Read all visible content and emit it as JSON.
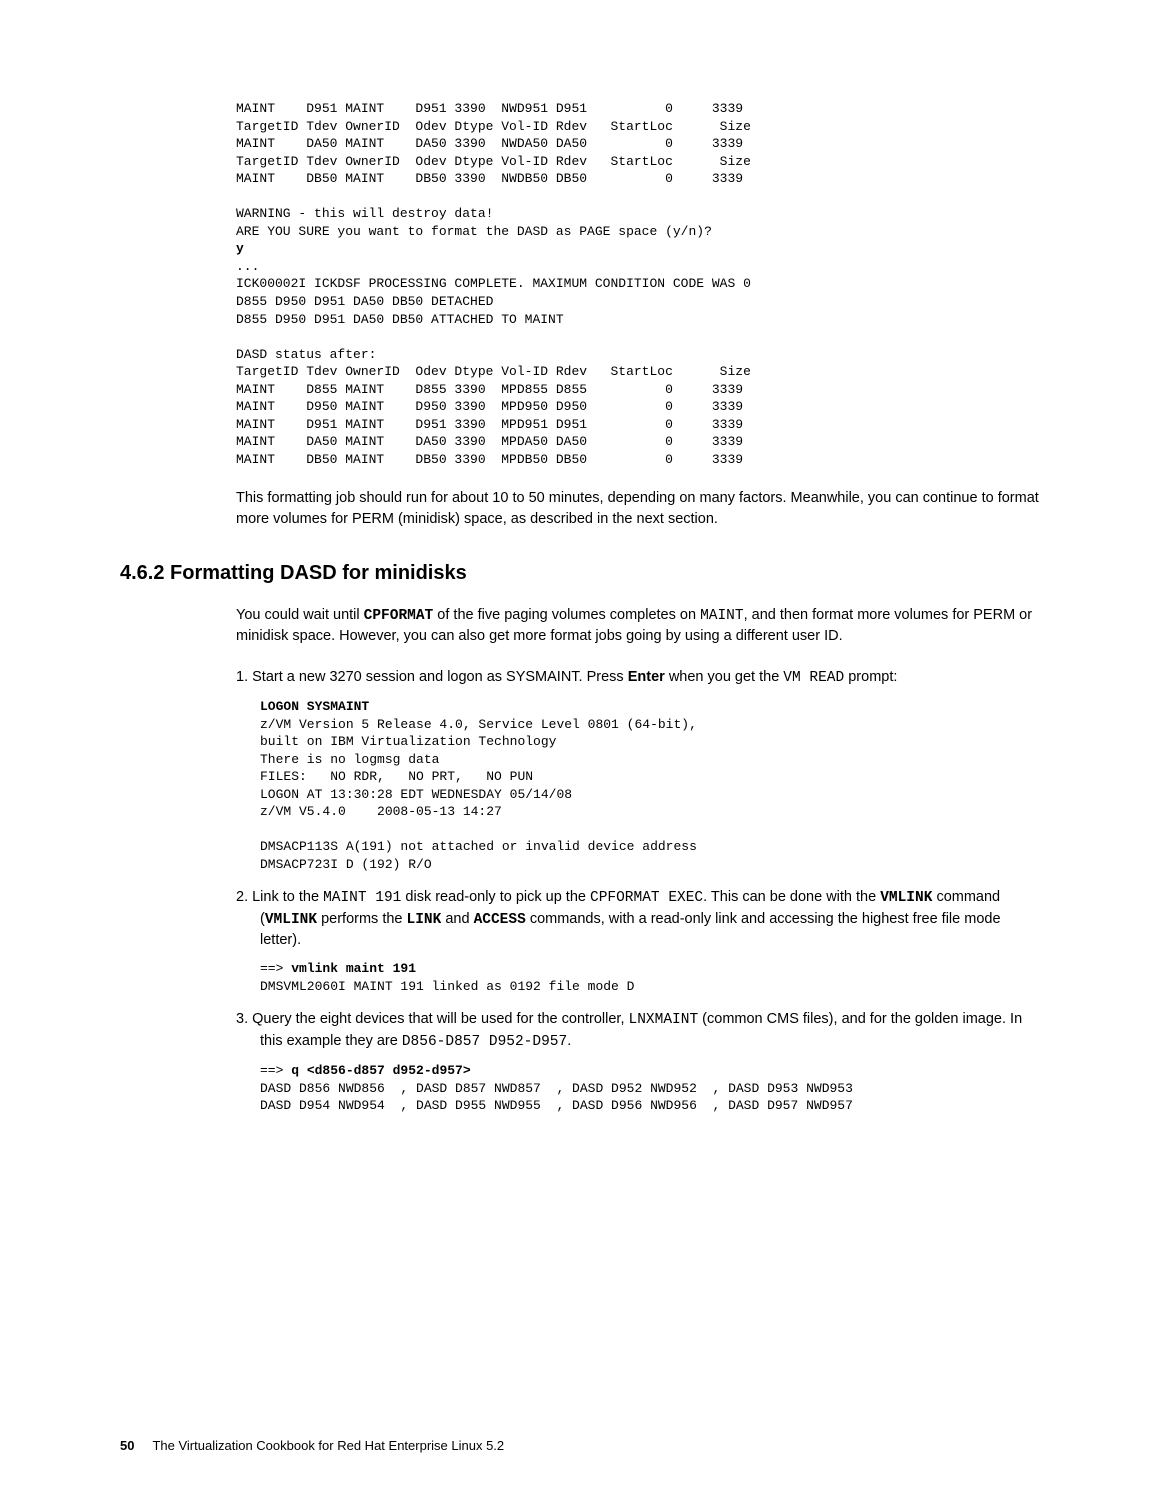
{
  "code1": {
    "lines": [
      [
        {
          "t": "MAINT    D951 MAINT    D951 3390  NWD951 D951          0     3339",
          "b": false
        }
      ],
      [
        {
          "t": "TargetID Tdev OwnerID  Odev Dtype Vol-ID Rdev   StartLoc      Size",
          "b": false
        }
      ],
      [
        {
          "t": "MAINT    DA50 MAINT    DA50 3390  NWDA50 DA50          0     3339",
          "b": false
        }
      ],
      [
        {
          "t": "TargetID Tdev OwnerID  Odev Dtype Vol-ID Rdev   StartLoc      Size",
          "b": false
        }
      ],
      [
        {
          "t": "MAINT    DB50 MAINT    DB50 3390  NWDB50 DB50          0     3339",
          "b": false
        }
      ],
      [
        {
          "t": "",
          "b": false
        }
      ],
      [
        {
          "t": "WARNING - this will destroy data!",
          "b": false
        }
      ],
      [
        {
          "t": "ARE YOU SURE you want to format the DASD as PAGE space (y/n)?",
          "b": false
        }
      ],
      [
        {
          "t": "y",
          "b": true
        }
      ],
      [
        {
          "t": "...",
          "b": false
        }
      ],
      [
        {
          "t": "ICK00002I ICKDSF PROCESSING COMPLETE. MAXIMUM CONDITION CODE WAS 0",
          "b": false
        }
      ],
      [
        {
          "t": "D855 D950 D951 DA50 DB50 DETACHED",
          "b": false
        }
      ],
      [
        {
          "t": "D855 D950 D951 DA50 DB50 ATTACHED TO MAINT",
          "b": false
        }
      ],
      [
        {
          "t": "",
          "b": false
        }
      ],
      [
        {
          "t": "DASD status after:",
          "b": false
        }
      ],
      [
        {
          "t": "TargetID Tdev OwnerID  Odev Dtype Vol-ID Rdev   StartLoc      Size",
          "b": false
        }
      ],
      [
        {
          "t": "MAINT    D855 MAINT    D855 3390  MPD855 D855          0     3339",
          "b": false
        }
      ],
      [
        {
          "t": "MAINT    D950 MAINT    D950 3390  MPD950 D950          0     3339",
          "b": false
        }
      ],
      [
        {
          "t": "MAINT    D951 MAINT    D951 3390  MPD951 D951          0     3339",
          "b": false
        }
      ],
      [
        {
          "t": "MAINT    DA50 MAINT    DA50 3390  MPDA50 DA50          0     3339",
          "b": false
        }
      ],
      [
        {
          "t": "MAINT    DB50 MAINT    DB50 3390  MPDB50 DB50          0     3339",
          "b": false
        }
      ]
    ]
  },
  "para1": "This formatting job should run for about 10 to 50 minutes, depending on many factors. Meanwhile, you can continue to format more volumes for PERM (minidisk) space, as described in the next section.",
  "heading": "4.6.2  Formatting DASD for minidisks",
  "para2a": "You could wait until ",
  "para2b": "CPFORMAT",
  "para2c": " of the five paging volumes completes on ",
  "para2d": "MAINT",
  "para2e": ", and then format more volumes for PERM or minidisk space. However, you can also get more format jobs going by using a different user ID.",
  "step1a": "1.  Start a new 3270 session and logon as SYSMAINT. Press ",
  "step1b": "Enter",
  "step1c": " when you get the ",
  "step1d": "VM READ",
  "step1e": " prompt:",
  "code2": {
    "lines": [
      [
        {
          "t": "LOGON SYSMAINT",
          "b": true
        }
      ],
      [
        {
          "t": "z/VM Version 5 Release 4.0, Service Level 0801 (64-bit),",
          "b": false
        }
      ],
      [
        {
          "t": "built on IBM Virtualization Technology",
          "b": false
        }
      ],
      [
        {
          "t": "There is no logmsg data",
          "b": false
        }
      ],
      [
        {
          "t": "FILES:   NO RDR,   NO PRT,   NO PUN",
          "b": false
        }
      ],
      [
        {
          "t": "LOGON AT 13:30:28 EDT WEDNESDAY 05/14/08",
          "b": false
        }
      ],
      [
        {
          "t": "z/VM V5.4.0    2008-05-13 14:27",
          "b": false
        }
      ],
      [
        {
          "t": "",
          "b": false
        }
      ],
      [
        {
          "t": "DMSACP113S A(191) not attached or invalid device address",
          "b": false
        }
      ],
      [
        {
          "t": "DMSACP723I D (192) R/O",
          "b": false
        }
      ]
    ]
  },
  "step2a": "2.  Link to the ",
  "step2b": "MAINT 191",
  "step2c": " disk read-only to pick up the ",
  "step2d": "CPFORMAT EXEC",
  "step2e": ". This can be done with the ",
  "step2f": "VMLINK",
  "step2g": " command (",
  "step2h": "VMLINK",
  "step2i": " performs the ",
  "step2j": "LINK",
  "step2k": " and ",
  "step2l": "ACCESS",
  "step2m": " commands, with a read-only link and accessing the highest free file mode letter).",
  "code3": {
    "lines": [
      [
        {
          "t": "==> ",
          "b": false
        },
        {
          "t": "vmlink maint 191",
          "b": true
        }
      ],
      [
        {
          "t": "DMSVML2060I MAINT 191 linked as 0192 file mode D",
          "b": false
        }
      ]
    ]
  },
  "step3a": "3.  Query the eight devices that will be used for the controller, ",
  "step3b": "LNXMAINT",
  "step3c": " (common CMS files), and for the golden image. In this example they are ",
  "step3d": "D856-D857 D952-D957",
  "step3e": ".",
  "code4": {
    "lines": [
      [
        {
          "t": "==> ",
          "b": false
        },
        {
          "t": "q <d856-d857 d952-d957>",
          "b": true
        }
      ],
      [
        {
          "t": "DASD D856 NWD856  , DASD D857 NWD857  , DASD D952 NWD952  , DASD D953 NWD953",
          "b": false
        }
      ],
      [
        {
          "t": "DASD D954 NWD954  , DASD D955 NWD955  , DASD D956 NWD956  , DASD D957 NWD957",
          "b": false
        }
      ]
    ]
  },
  "footer": {
    "page": "50",
    "title": "The Virtualization Cookbook for Red Hat Enterprise Linux 5.2"
  }
}
